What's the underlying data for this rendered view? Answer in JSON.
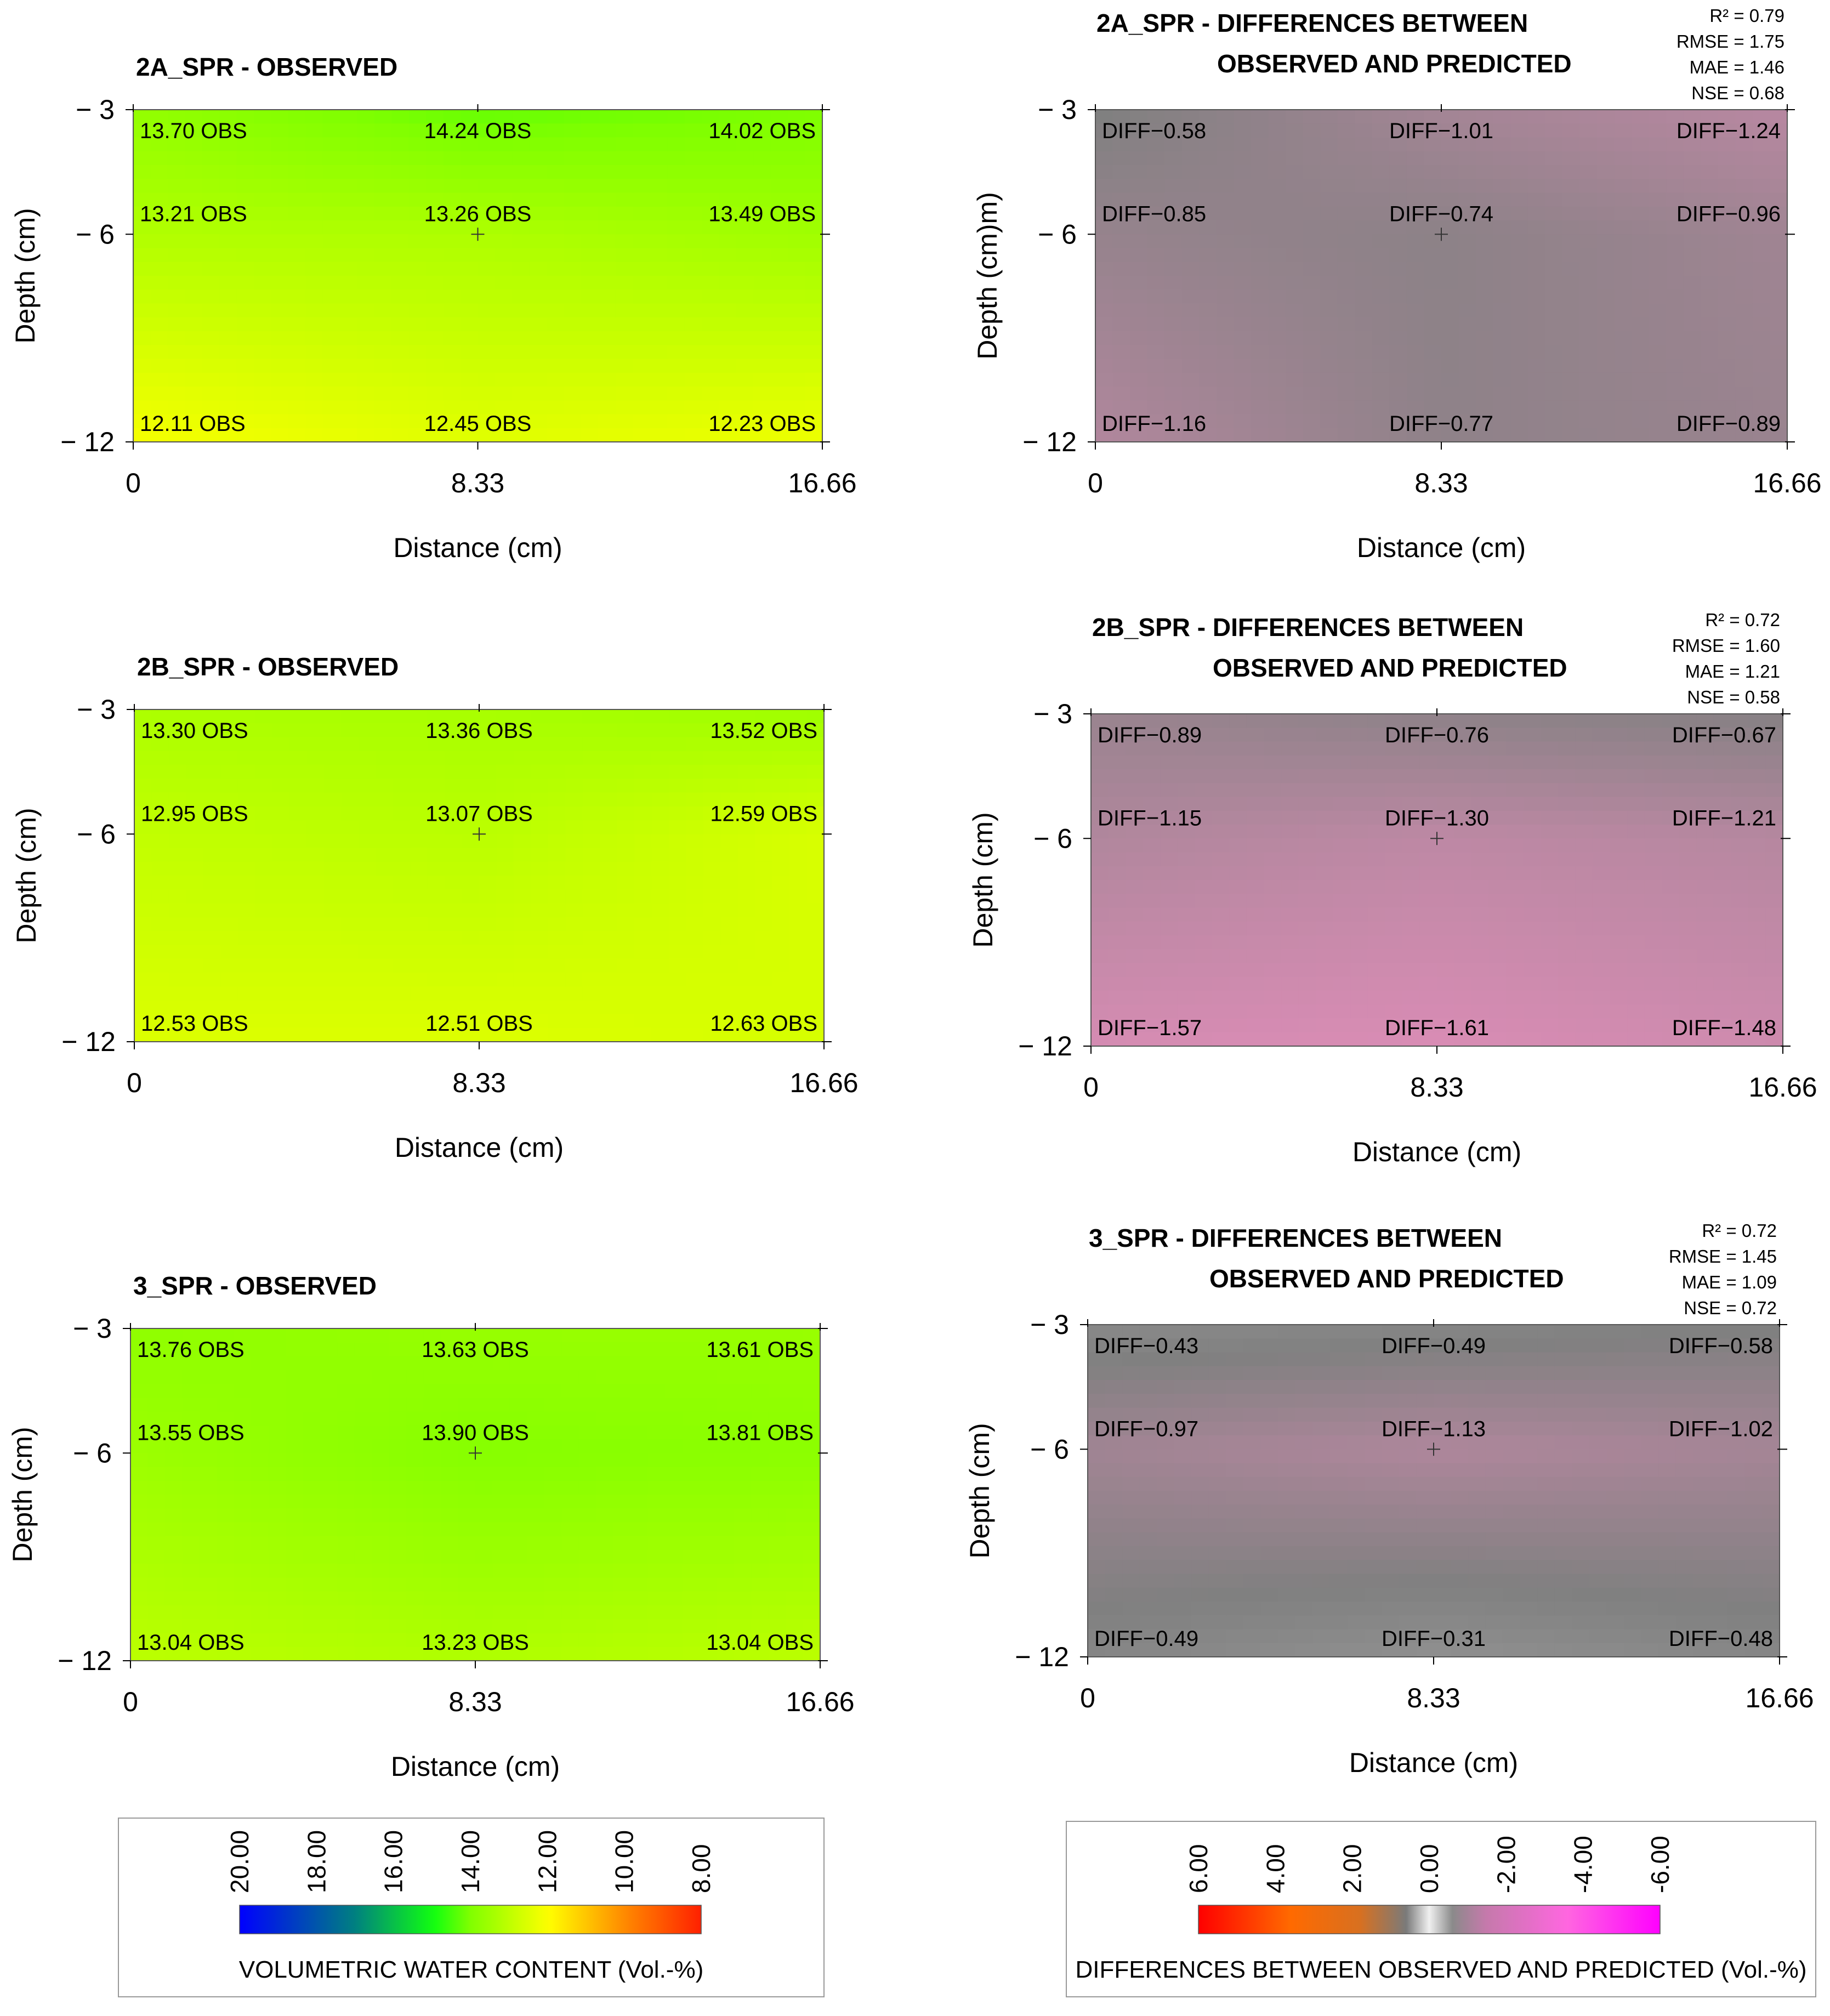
{
  "chart_data": [
    {
      "type": "heatmap",
      "title": "2A_SPR - OBSERVED",
      "xlabel": "Distance (cm)",
      "ylabel": "Depth (cm)",
      "x_ticks": [
        "0",
        "8.33",
        "16.66"
      ],
      "y_ticks": [
        "− 3",
        "− 6",
        "− 12"
      ],
      "xlim": [
        0,
        16.66
      ],
      "ylim": [
        -12,
        -3
      ],
      "colormap": "volumetric",
      "points": [
        {
          "x": 0,
          "y": -3,
          "value": 13.7,
          "label": "13.70 OBS"
        },
        {
          "x": 8.33,
          "y": -3,
          "value": 14.24,
          "label": "14.24 OBS"
        },
        {
          "x": 16.66,
          "y": -3,
          "value": 14.02,
          "label": "14.02 OBS"
        },
        {
          "x": 0,
          "y": -6,
          "value": 13.21,
          "label": "13.21 OBS"
        },
        {
          "x": 8.33,
          "y": -6,
          "value": 13.26,
          "label": "13.26 OBS"
        },
        {
          "x": 16.66,
          "y": -6,
          "value": 13.49,
          "label": "13.49 OBS"
        },
        {
          "x": 0,
          "y": -12,
          "value": 12.11,
          "label": "12.11 OBS"
        },
        {
          "x": 8.33,
          "y": -12,
          "value": 12.45,
          "label": "12.45 OBS"
        },
        {
          "x": 16.66,
          "y": -12,
          "value": 12.23,
          "label": "12.23 OBS"
        }
      ]
    },
    {
      "type": "heatmap",
      "title": "2A_SPR - DIFFERENCES BETWEEN",
      "title2": "OBSERVED AND PREDICTED",
      "xlabel": "Distance (cm)",
      "ylabel": "Depth (cm)m)",
      "x_ticks": [
        "0",
        "8.33",
        "16.66"
      ],
      "y_ticks": [
        "− 3",
        "− 6",
        "− 12"
      ],
      "xlim": [
        0,
        16.66
      ],
      "ylim": [
        -12,
        -3
      ],
      "colormap": "difference",
      "stats": [
        "R² = 0.79",
        "RMSE = 1.75",
        "MAE = 1.46",
        "NSE = 0.68"
      ],
      "points": [
        {
          "x": 0,
          "y": -3,
          "value": -0.58,
          "label": "DIFF−0.58"
        },
        {
          "x": 8.33,
          "y": -3,
          "value": -1.01,
          "label": "DIFF−1.01"
        },
        {
          "x": 16.66,
          "y": -3,
          "value": -1.24,
          "label": "DIFF−1.24"
        },
        {
          "x": 0,
          "y": -6,
          "value": -0.85,
          "label": "DIFF−0.85"
        },
        {
          "x": 8.33,
          "y": -6,
          "value": -0.74,
          "label": "DIFF−0.74"
        },
        {
          "x": 16.66,
          "y": -6,
          "value": -0.96,
          "label": "DIFF−0.96"
        },
        {
          "x": 0,
          "y": -12,
          "value": -1.16,
          "label": "DIFF−1.16"
        },
        {
          "x": 8.33,
          "y": -12,
          "value": -0.77,
          "label": "DIFF−0.77"
        },
        {
          "x": 16.66,
          "y": -12,
          "value": -0.89,
          "label": "DIFF−0.89"
        }
      ]
    },
    {
      "type": "heatmap",
      "title": "2B_SPR - OBSERVED",
      "xlabel": "Distance (cm)",
      "ylabel": "Depth (cm)",
      "x_ticks": [
        "0",
        "8.33",
        "16.66"
      ],
      "y_ticks": [
        "− 3",
        "− 6",
        "− 12"
      ],
      "xlim": [
        0,
        16.66
      ],
      "ylim": [
        -12,
        -3
      ],
      "colormap": "volumetric",
      "points": [
        {
          "x": 0,
          "y": -3,
          "value": 13.3,
          "label": "13.30 OBS"
        },
        {
          "x": 8.33,
          "y": -3,
          "value": 13.36,
          "label": "13.36 OBS"
        },
        {
          "x": 16.66,
          "y": -3,
          "value": 13.52,
          "label": "13.52 OBS"
        },
        {
          "x": 0,
          "y": -6,
          "value": 12.95,
          "label": "12.95 OBS"
        },
        {
          "x": 8.33,
          "y": -6,
          "value": 13.07,
          "label": "13.07 OBS"
        },
        {
          "x": 16.66,
          "y": -6,
          "value": 12.59,
          "label": "12.59 OBS"
        },
        {
          "x": 0,
          "y": -12,
          "value": 12.53,
          "label": "12.53 OBS"
        },
        {
          "x": 8.33,
          "y": -12,
          "value": 12.51,
          "label": "12.51 OBS"
        },
        {
          "x": 16.66,
          "y": -12,
          "value": 12.63,
          "label": "12.63 OBS"
        }
      ]
    },
    {
      "type": "heatmap",
      "title": "2B_SPR - DIFFERENCES BETWEEN",
      "title2": "OBSERVED AND PREDICTED",
      "xlabel": "Distance (cm)",
      "ylabel": "Depth (cm)",
      "x_ticks": [
        "0",
        "8.33",
        "16.66"
      ],
      "y_ticks": [
        "− 3",
        "− 6",
        "− 12"
      ],
      "xlim": [
        0,
        16.66
      ],
      "ylim": [
        -12,
        -3
      ],
      "colormap": "difference",
      "stats": [
        "R² = 0.72",
        "RMSE = 1.60",
        "MAE = 1.21",
        "NSE = 0.58"
      ],
      "points": [
        {
          "x": 0,
          "y": -3,
          "value": -0.89,
          "label": "DIFF−0.89"
        },
        {
          "x": 8.33,
          "y": -3,
          "value": -0.76,
          "label": "DIFF−0.76"
        },
        {
          "x": 16.66,
          "y": -3,
          "value": -0.67,
          "label": "DIFF−0.67"
        },
        {
          "x": 0,
          "y": -6,
          "value": -1.15,
          "label": "DIFF−1.15"
        },
        {
          "x": 8.33,
          "y": -6,
          "value": -1.3,
          "label": "DIFF−1.30"
        },
        {
          "x": 16.66,
          "y": -6,
          "value": -1.21,
          "label": "DIFF−1.21"
        },
        {
          "x": 0,
          "y": -12,
          "value": -1.57,
          "label": "DIFF−1.57"
        },
        {
          "x": 8.33,
          "y": -12,
          "value": -1.61,
          "label": "DIFF−1.61"
        },
        {
          "x": 16.66,
          "y": -12,
          "value": -1.48,
          "label": "DIFF−1.48"
        }
      ]
    },
    {
      "type": "heatmap",
      "title": "3_SPR - OBSERVED",
      "xlabel": "Distance (cm)",
      "ylabel": "Depth (cm)",
      "x_ticks": [
        "0",
        "8.33",
        "16.66"
      ],
      "y_ticks": [
        "− 3",
        "− 6",
        "− 12"
      ],
      "xlim": [
        0,
        16.66
      ],
      "ylim": [
        -12,
        -3
      ],
      "colormap": "volumetric",
      "points": [
        {
          "x": 0,
          "y": -3,
          "value": 13.76,
          "label": "13.76 OBS"
        },
        {
          "x": 8.33,
          "y": -3,
          "value": 13.63,
          "label": "13.63 OBS"
        },
        {
          "x": 16.66,
          "y": -3,
          "value": 13.61,
          "label": "13.61 OBS"
        },
        {
          "x": 0,
          "y": -6,
          "value": 13.55,
          "label": "13.55 OBS"
        },
        {
          "x": 8.33,
          "y": -6,
          "value": 13.9,
          "label": "13.90 OBS"
        },
        {
          "x": 16.66,
          "y": -6,
          "value": 13.81,
          "label": "13.81 OBS"
        },
        {
          "x": 0,
          "y": -12,
          "value": 13.04,
          "label": "13.04 OBS"
        },
        {
          "x": 8.33,
          "y": -12,
          "value": 13.23,
          "label": "13.23 OBS"
        },
        {
          "x": 16.66,
          "y": -12,
          "value": 13.04,
          "label": "13.04 OBS"
        }
      ]
    },
    {
      "type": "heatmap",
      "title": "3_SPR - DIFFERENCES BETWEEN",
      "title2": "OBSERVED AND PREDICTED",
      "xlabel": "Distance (cm)",
      "ylabel": "Depth (cm)",
      "x_ticks": [
        "0",
        "8.33",
        "16.66"
      ],
      "y_ticks": [
        "− 3",
        "− 6",
        "− 12"
      ],
      "xlim": [
        0,
        16.66
      ],
      "ylim": [
        -12,
        -3
      ],
      "colormap": "difference",
      "stats": [
        "R² = 0.72",
        "RMSE = 1.45",
        "MAE = 1.09",
        "NSE = 0.72"
      ],
      "points": [
        {
          "x": 0,
          "y": -3,
          "value": -0.43,
          "label": "DIFF−0.43"
        },
        {
          "x": 8.33,
          "y": -3,
          "value": -0.49,
          "label": "DIFF−0.49"
        },
        {
          "x": 16.66,
          "y": -3,
          "value": -0.58,
          "label": "DIFF−0.58"
        },
        {
          "x": 0,
          "y": -6,
          "value": -0.97,
          "label": "DIFF−0.97"
        },
        {
          "x": 8.33,
          "y": -6,
          "value": -1.13,
          "label": "DIFF−1.13"
        },
        {
          "x": 16.66,
          "y": -6,
          "value": -1.02,
          "label": "DIFF−1.02"
        },
        {
          "x": 0,
          "y": -12,
          "value": -0.49,
          "label": "DIFF−0.49"
        },
        {
          "x": 8.33,
          "y": -12,
          "value": -0.31,
          "label": "DIFF−0.31"
        },
        {
          "x": 16.66,
          "y": -12,
          "value": -0.48,
          "label": "DIFF−0.48"
        }
      ]
    }
  ],
  "legends": [
    {
      "title": "VOLUMETRIC WATER CONTENT (Vol.-%)",
      "ticks": [
        "20.00",
        "18.00",
        "16.00",
        "14.00",
        "12.00",
        "10.00",
        "8.00"
      ],
      "tick_values": [
        20,
        18,
        16,
        14,
        12,
        10,
        8
      ],
      "colors": [
        "#0000ff",
        "#00ff00",
        "#ffff00",
        "#ff0000"
      ]
    },
    {
      "title": "DIFFERENCES BETWEEN OBSERVED AND PREDICTED (Vol.-%)",
      "ticks": [
        "6.00",
        "4.00",
        "2.00",
        "0.00",
        "-2.00",
        "-4.00",
        "-6.00"
      ],
      "tick_values": [
        6,
        4,
        2,
        0,
        -2,
        -4,
        -6
      ],
      "colors": [
        "#ff0000",
        "#ff8c00",
        "#888888",
        "#ffffff",
        "#888888",
        "#ff88cc",
        "#ff00ff"
      ]
    }
  ]
}
